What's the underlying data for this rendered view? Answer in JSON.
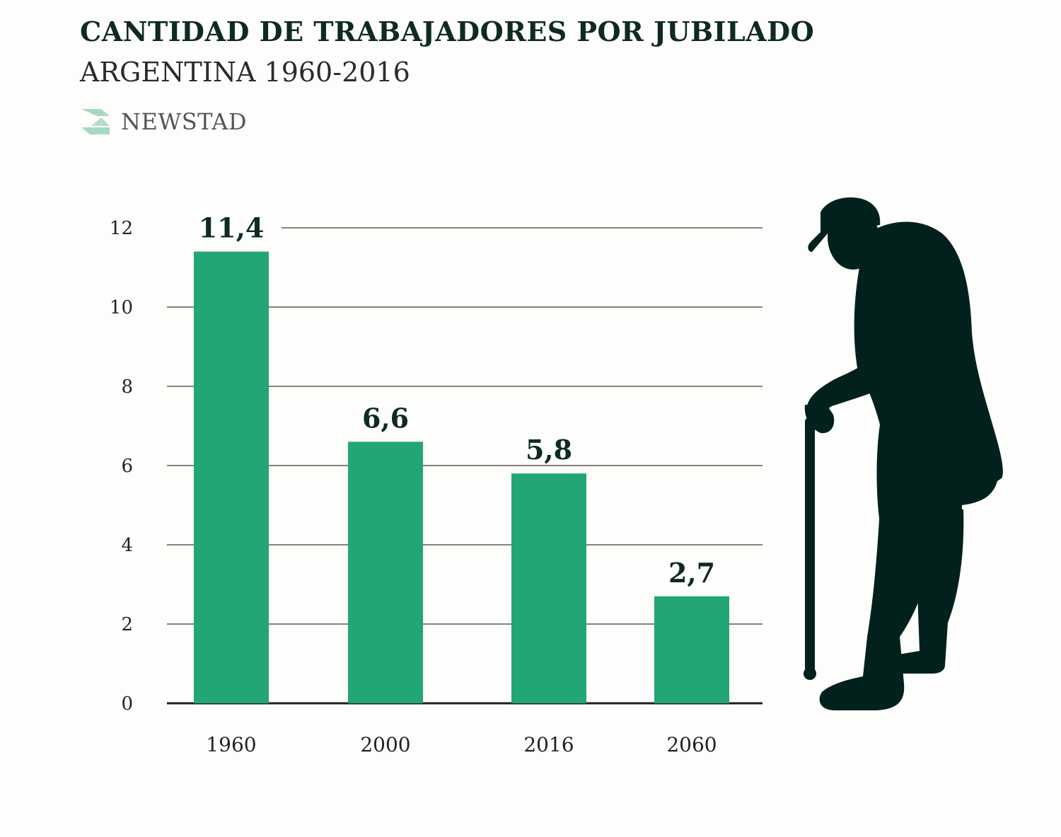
{
  "header": {
    "title": "CANTIDAD DE TRABAJADORES POR JUBILADO",
    "subtitle": "ARGENTINA 1960-2016",
    "brand": "NEWSTAD"
  },
  "colors": {
    "bar": "#22a673",
    "grid": "#8d7f7d",
    "axis": "#1f1f1f",
    "silhouette": "#02211c",
    "title": "#0f2a22",
    "brand_mark": "#a9d8c2"
  },
  "icons": {
    "brand_mark": "newstad-logo-icon",
    "illustration": "elderly-man-with-cane-icon"
  },
  "chart_data": {
    "type": "bar",
    "categories": [
      "1960",
      "2000",
      "2016",
      "2060"
    ],
    "values": [
      11.4,
      6.6,
      5.8,
      2.7
    ],
    "value_labels": [
      "11,4",
      "6,6",
      "5,8",
      "2,7"
    ],
    "title": "CANTIDAD DE TRABAJADORES POR JUBILADO",
    "subtitle": "ARGENTINA 1960-2016",
    "xlabel": "",
    "ylabel": "",
    "ylim": [
      0,
      12
    ],
    "yticks": [
      0,
      2,
      4,
      6,
      8,
      10,
      12
    ],
    "grid": true,
    "legend": "none"
  }
}
